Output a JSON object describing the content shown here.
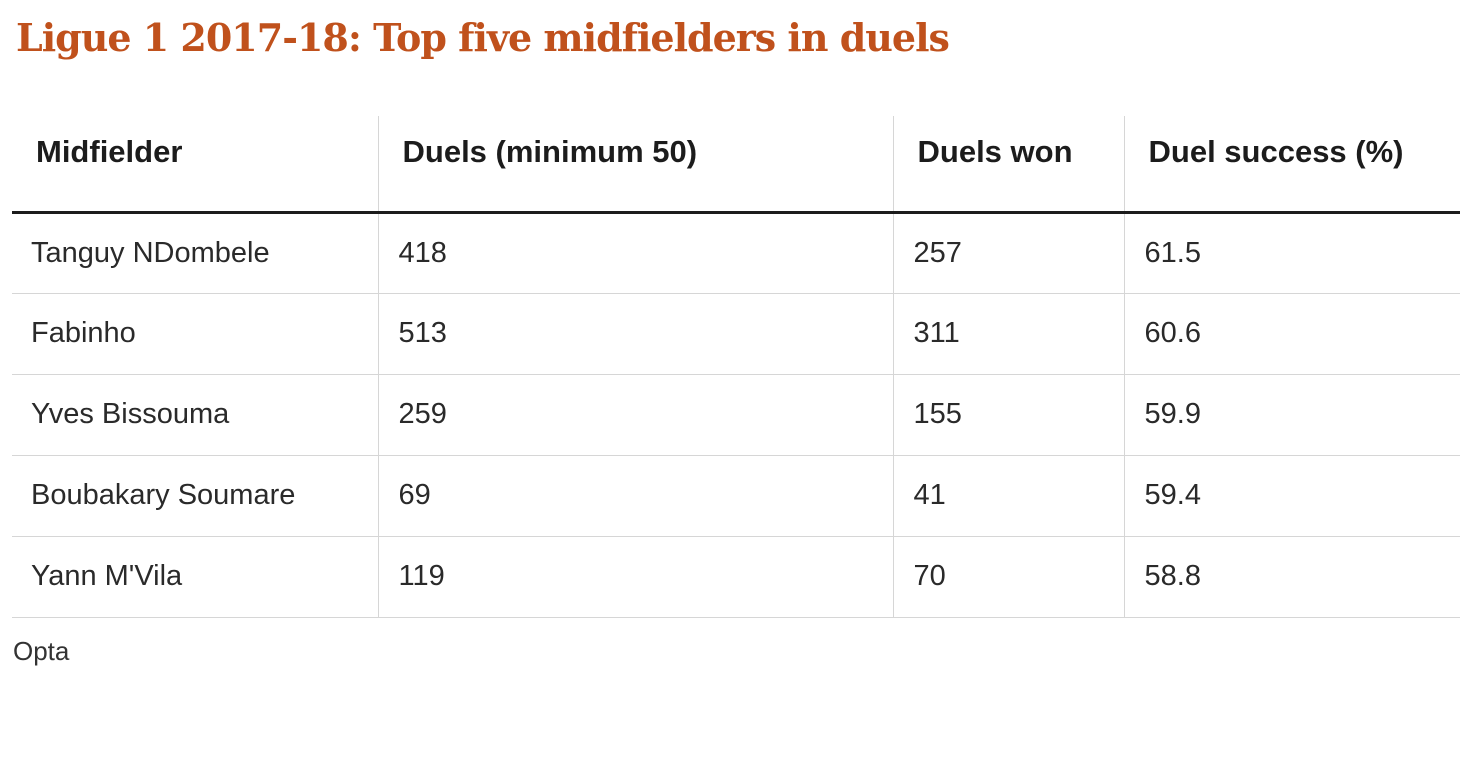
{
  "title": "Ligue 1 2017-18: Top five midfielders in duels",
  "source": "Opta",
  "colors": {
    "title": "#c0511c",
    "header_rule": "#1c1c1c",
    "grid": "#d6d6d6"
  },
  "chart_data": {
    "type": "table",
    "title": "Ligue 1 2017-18: Top five midfielders in duels",
    "columns": [
      "Midfielder",
      "Duels (minimum 50)",
      "Duels won",
      "Duel success (%)"
    ],
    "rows": [
      [
        "Tanguy NDombele",
        "418",
        "257",
        "61.5"
      ],
      [
        "Fabinho",
        "513",
        "311",
        "60.6"
      ],
      [
        "Yves Bissouma",
        "259",
        "155",
        "59.9"
      ],
      [
        "Boubakary Soumare",
        "69",
        "41",
        "59.4"
      ],
      [
        "Yann M'Vila",
        "119",
        "70",
        "58.8"
      ]
    ],
    "source": "Opta"
  }
}
